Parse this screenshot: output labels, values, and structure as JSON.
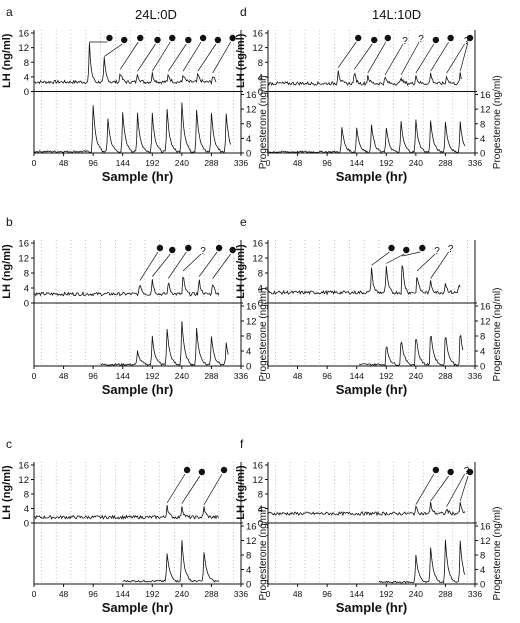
{
  "column_titles": [
    "24L:0D",
    "14L:10D"
  ],
  "chart_data": [
    {
      "panel_label": "a",
      "type": "line",
      "xlabel": "Sample (hr)",
      "ylabel_top": "LH (ng/ml)",
      "ylabel_bottom": "Progesterone (ng/ml)",
      "xticks": [
        0,
        48,
        96,
        144,
        192,
        240,
        288,
        336
      ],
      "yticks_lh": [
        0,
        4,
        8,
        12,
        16
      ],
      "yticks_prog": [
        0,
        4,
        8,
        12,
        16
      ],
      "xlim": [
        0,
        336
      ],
      "ylim_lh": [
        0,
        16
      ],
      "ylim_prog": [
        0,
        16
      ],
      "lh_peaks": [
        [
          90,
          13
        ],
        [
          114,
          9
        ],
        [
          140,
          5.5
        ],
        [
          168,
          5
        ],
        [
          192,
          5
        ],
        [
          218,
          5
        ],
        [
          242,
          5
        ],
        [
          266,
          5
        ],
        [
          290,
          4.5
        ]
      ],
      "lh_baseline": 2.6,
      "lh_start": 0,
      "lh_end": 296,
      "prog_peaks": [
        [
          96,
          13
        ],
        [
          120,
          9.5
        ],
        [
          144,
          11
        ],
        [
          168,
          11
        ],
        [
          192,
          11
        ],
        [
          216,
          12
        ],
        [
          240,
          14
        ],
        [
          264,
          12
        ],
        [
          288,
          11
        ],
        [
          312,
          11
        ]
      ],
      "prog_baseline": 0.4,
      "prog_start": 0,
      "prog_end": 320,
      "markers": [
        "●",
        "●",
        "●",
        "●",
        "●",
        "●",
        "●",
        "●",
        "●"
      ]
    },
    {
      "panel_label": "b",
      "type": "line",
      "xlabel": "Sample (hr)",
      "ylabel_top": "LH (ng/ml)",
      "ylabel_bottom": "Progesterone (ng/ml)",
      "xticks": [
        0,
        48,
        96,
        144,
        192,
        240,
        288,
        336
      ],
      "yticks_lh": [
        0,
        4,
        8,
        12,
        16
      ],
      "yticks_prog": [
        0,
        4,
        8,
        12,
        16
      ],
      "xlim": [
        0,
        336
      ],
      "ylim_lh": [
        0,
        16
      ],
      "ylim_prog": [
        0,
        16
      ],
      "lh_peaks": [
        [
          172,
          5.5
        ],
        [
          192,
          6.5
        ],
        [
          218,
          6
        ],
        [
          242,
          8
        ],
        [
          268,
          6.5
        ],
        [
          290,
          6
        ]
      ],
      "lh_baseline": 2.4,
      "lh_start": 0,
      "lh_end": 300,
      "prog_peaks": [
        [
          168,
          4
        ],
        [
          192,
          8
        ],
        [
          216,
          10
        ],
        [
          240,
          12
        ],
        [
          264,
          10
        ],
        [
          288,
          8
        ],
        [
          312,
          6
        ]
      ],
      "prog_baseline": 0.4,
      "prog_start": 108,
      "prog_end": 316,
      "markers": [
        "●",
        "●",
        "●",
        "?",
        "●",
        "●"
      ]
    },
    {
      "panel_label": "c",
      "type": "line",
      "xlabel": "Sample (hr)",
      "ylabel_top": "LH (ng/ml)",
      "ylabel_bottom": "Progesterone (ng/ml)",
      "xticks": [
        0,
        48,
        96,
        144,
        192,
        240,
        288,
        336
      ],
      "yticks_lh": [
        0,
        4,
        8,
        12,
        16
      ],
      "yticks_prog": [
        0,
        4,
        8,
        12,
        16
      ],
      "xlim": [
        0,
        336
      ],
      "ylim_lh": [
        0,
        16
      ],
      "ylim_prog": [
        0,
        16
      ],
      "lh_peaks": [
        [
          216,
          5
        ],
        [
          240,
          4.8
        ],
        [
          276,
          4.5
        ]
      ],
      "lh_baseline": 1.6,
      "lh_start": 0,
      "lh_end": 300,
      "prog_peaks": [
        [
          216,
          8.5
        ],
        [
          240,
          12
        ],
        [
          276,
          9
        ]
      ],
      "prog_baseline": 0.8,
      "prog_start": 144,
      "prog_end": 300,
      "markers": [
        "●",
        "●",
        "●",
        "●"
      ]
    },
    {
      "panel_label": "d",
      "type": "line",
      "xlabel": "Sample (hr)",
      "ylabel_top": "LH (ng/ml)",
      "ylabel_bottom": "Progesterone (ng/ml)",
      "xticks": [
        0,
        48,
        96,
        144,
        192,
        240,
        288,
        336
      ],
      "yticks_lh": [
        0,
        4,
        8,
        12,
        16
      ],
      "yticks_prog": [
        0,
        4,
        8,
        12,
        16
      ],
      "xlim": [
        0,
        336
      ],
      "ylim_lh": [
        0,
        16
      ],
      "ylim_prog": [
        0,
        16
      ],
      "lh_peaks": [
        [
          114,
          6
        ],
        [
          140,
          5.5
        ],
        [
          162,
          4.5
        ],
        [
          190,
          4
        ],
        [
          216,
          4
        ],
        [
          240,
          4.5
        ],
        [
          264,
          5
        ],
        [
          290,
          4.5
        ],
        [
          312,
          5
        ]
      ],
      "lh_baseline": 2.2,
      "lh_start": 0,
      "lh_end": 316,
      "prog_peaks": [
        [
          120,
          7
        ],
        [
          144,
          7
        ],
        [
          168,
          8
        ],
        [
          192,
          7
        ],
        [
          216,
          8.5
        ],
        [
          240,
          9
        ],
        [
          264,
          9
        ],
        [
          288,
          8.5
        ],
        [
          312,
          8.5
        ]
      ],
      "prog_baseline": 0.3,
      "prog_start": 0,
      "prog_end": 320,
      "markers": [
        "●",
        "●",
        "●",
        "?",
        "?",
        "●",
        "●",
        "?",
        "●"
      ]
    },
    {
      "panel_label": "e",
      "type": "line",
      "xlabel": "Sample (hr)",
      "ylabel_top": "LH (ng/ml)",
      "ylabel_bottom": "Progesterone (ng/ml)",
      "xticks": [
        0,
        48,
        96,
        144,
        192,
        240,
        288,
        336
      ],
      "yticks_lh": [
        0,
        4,
        8,
        12,
        16
      ],
      "yticks_prog": [
        0,
        4,
        8,
        12,
        16
      ],
      "xlim": [
        0,
        336
      ],
      "ylim_lh": [
        0,
        16
      ],
      "ylim_prog": [
        0,
        16
      ],
      "lh_peaks": [
        [
          168,
          9.5
        ],
        [
          192,
          10
        ],
        [
          218,
          12
        ],
        [
          242,
          8
        ],
        [
          264,
          6
        ],
        [
          288,
          5.5
        ],
        [
          310,
          5.5
        ]
      ],
      "lh_baseline": 2.8,
      "lh_start": 0,
      "lh_end": 312,
      "prog_peaks": [
        [
          192,
          6
        ],
        [
          216,
          8
        ],
        [
          240,
          9
        ],
        [
          264,
          10
        ],
        [
          288,
          9.5
        ],
        [
          312,
          10
        ]
      ],
      "prog_baseline": 0.4,
      "prog_start": 148,
      "prog_end": 316,
      "markers": [
        "●",
        "●",
        "●",
        "?",
        "?"
      ]
    },
    {
      "panel_label": "f",
      "type": "line",
      "xlabel": "Sample (hr)",
      "ylabel_top": "LH (ng/ml)",
      "ylabel_bottom": "Progesterone (ng/ml)",
      "xticks": [
        0,
        48,
        96,
        144,
        192,
        240,
        288,
        336
      ],
      "yticks_lh": [
        0,
        4,
        8,
        12,
        16
      ],
      "yticks_prog": [
        0,
        4,
        8,
        12,
        16
      ],
      "xlim": [
        0,
        336
      ],
      "ylim_lh": [
        0,
        16
      ],
      "ylim_prog": [
        0,
        16
      ],
      "lh_peaks": [
        [
          240,
          4.5
        ],
        [
          264,
          5.5
        ],
        [
          290,
          4
        ],
        [
          312,
          5.5
        ]
      ],
      "lh_baseline": 2.6,
      "lh_start": 0,
      "lh_end": 320,
      "prog_peaks": [
        [
          240,
          8
        ],
        [
          264,
          10
        ],
        [
          288,
          12
        ],
        [
          312,
          12
        ]
      ],
      "prog_baseline": 0.5,
      "prog_start": 180,
      "prog_end": 320,
      "markers": [
        "●",
        "●",
        "?",
        "●"
      ]
    }
  ]
}
